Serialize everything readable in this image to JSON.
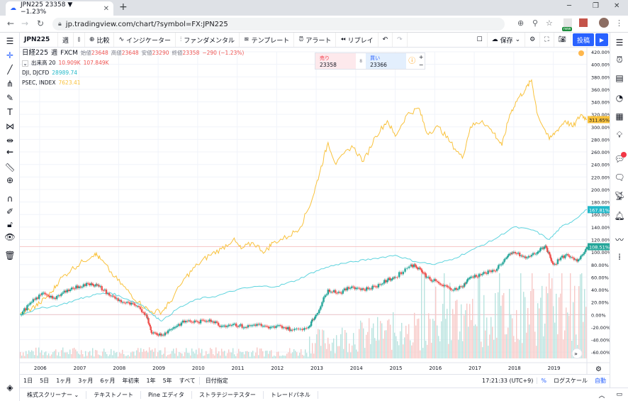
{
  "browser": {
    "tab_title": "JPN225 23358 ▼ −1.23%",
    "url": "jp.tradingview.com/chart/?symbol=FX:JPN225"
  },
  "toolbar": {
    "symbol": "JPN225",
    "interval": "週",
    "compare": "比較",
    "indicators": "インジケーター",
    "fundamentals": "ファンダメンタル",
    "templates": "テンプレート",
    "alert": "アラート",
    "replay": "リプレイ",
    "save": "保存",
    "post": "投稿",
    "new_badge": "new"
  },
  "legend": {
    "title": "日経225",
    "interval": "週",
    "source": "FXCM",
    "open_label": "始値",
    "open": "23648",
    "high_label": "高値",
    "high": "23648",
    "low_label": "安値",
    "low": "23290",
    "close_label": "終値",
    "close": "23358",
    "change": "−290 (−1.23%)",
    "volume_label": "出来高 20",
    "volume_1": "10.909K",
    "volume_2": "107.849K",
    "dji_label": "DJI, DJCFD",
    "dji_value": "28989.74",
    "psec_label": "PSEC, INDEX",
    "psec_value": "7623.41"
  },
  "trade": {
    "sell_label": "売り",
    "sell_price": "23358",
    "spread": "8",
    "buy_label": "買い",
    "buy_price": "23366",
    "qty_plus": "+",
    "qty_minus": "−"
  },
  "range": {
    "buttons": [
      "1日",
      "5日",
      "1ヶ月",
      "3ヶ月",
      "6ヶ月",
      "年初来",
      "1年",
      "5年",
      "すべて"
    ],
    "goto_date": "日付指定",
    "time": "17:21:33 (UTC+9)",
    "percent": "%",
    "log": "ログスケール",
    "auto": "自動"
  },
  "panels": [
    "株式スクリーナー",
    "テキストノート",
    "Pine エディタ",
    "ストラテジーテスター",
    "トレードパネル"
  ],
  "colors": {
    "nikkei_up": "#26a69a",
    "nikkei_down": "#ef5350",
    "dji": "#5fd4de",
    "psec": "#f9c23c",
    "accent": "#2962ff"
  },
  "chart_data": {
    "type": "line",
    "ylim": [
      -70,
      420
    ],
    "y_ticks": [
      "420.00%",
      "400.00%",
      "380.00%",
      "360.00%",
      "340.00%",
      "320.00%",
      "300.00%",
      "280.00%",
      "260.00%",
      "240.00%",
      "220.00%",
      "200.00%",
      "180.00%",
      "160.00%",
      "140.00%",
      "120.00%",
      "100.00%",
      "80.00%",
      "60.00%",
      "40.00%",
      "20.00%",
      "0.00%",
      "-20.00%",
      "-40.00%",
      "-60.00%"
    ],
    "x_ticks": [
      "2006",
      "2007",
      "2008",
      "2009",
      "2010",
      "2011",
      "2012",
      "2013",
      "2014",
      "2015",
      "2016",
      "2017",
      "2018",
      "2019"
    ],
    "x_range": [
      2005.5,
      2019.85
    ],
    "last_labels": {
      "psec": "311.65%",
      "dji": "167.81%",
      "nikkei": "108.51%"
    },
    "series": [
      {
        "name": "PSEC, INDEX",
        "points": [
          [
            2005.5,
            0
          ],
          [
            2005.8,
            10
          ],
          [
            2006.0,
            18
          ],
          [
            2006.3,
            35
          ],
          [
            2006.5,
            55
          ],
          [
            2006.8,
            72
          ],
          [
            2007.1,
            85
          ],
          [
            2007.4,
            98
          ],
          [
            2007.55,
            88
          ],
          [
            2007.9,
            60
          ],
          [
            2008.2,
            40
          ],
          [
            2008.5,
            20
          ],
          [
            2008.8,
            5
          ],
          [
            2009.1,
            5
          ],
          [
            2009.3,
            20
          ],
          [
            2009.7,
            60
          ],
          [
            2010.0,
            80
          ],
          [
            2010.3,
            95
          ],
          [
            2010.6,
            105
          ],
          [
            2010.9,
            120
          ],
          [
            2011.1,
            105
          ],
          [
            2011.4,
            115
          ],
          [
            2011.7,
            100
          ],
          [
            2011.9,
            115
          ],
          [
            2012.3,
            125
          ],
          [
            2012.6,
            140
          ],
          [
            2012.9,
            185
          ],
          [
            2013.1,
            230
          ],
          [
            2013.3,
            275
          ],
          [
            2013.5,
            240
          ],
          [
            2013.9,
            270
          ],
          [
            2014.2,
            245
          ],
          [
            2014.5,
            285
          ],
          [
            2014.8,
            310
          ],
          [
            2015.0,
            285
          ],
          [
            2015.3,
            320
          ],
          [
            2015.6,
            330
          ],
          [
            2015.8,
            290
          ],
          [
            2016.1,
            300
          ],
          [
            2016.4,
            275
          ],
          [
            2016.7,
            250
          ],
          [
            2016.9,
            300
          ],
          [
            2017.2,
            310
          ],
          [
            2017.5,
            290
          ],
          [
            2017.7,
            270
          ],
          [
            2017.9,
            320
          ],
          [
            2018.1,
            345
          ],
          [
            2018.3,
            360
          ],
          [
            2018.45,
            375
          ],
          [
            2018.6,
            320
          ],
          [
            2018.9,
            280
          ],
          [
            2019.1,
            295
          ],
          [
            2019.3,
            310
          ],
          [
            2019.5,
            300
          ],
          [
            2019.7,
            320
          ],
          [
            2019.85,
            312
          ]
        ]
      },
      {
        "name": "DJI, DJCFD",
        "points": [
          [
            2005.5,
            0
          ],
          [
            2006.0,
            10
          ],
          [
            2006.5,
            15
          ],
          [
            2007.0,
            25
          ],
          [
            2007.4,
            32
          ],
          [
            2007.8,
            35
          ],
          [
            2008.2,
            25
          ],
          [
            2008.6,
            15
          ],
          [
            2008.9,
            -2
          ],
          [
            2009.1,
            -10
          ],
          [
            2009.5,
            10
          ],
          [
            2010.0,
            25
          ],
          [
            2010.5,
            30
          ],
          [
            2011.0,
            40
          ],
          [
            2011.5,
            45
          ],
          [
            2012.0,
            45
          ],
          [
            2012.5,
            55
          ],
          [
            2013.0,
            70
          ],
          [
            2013.5,
            80
          ],
          [
            2014.0,
            85
          ],
          [
            2014.5,
            90
          ],
          [
            2015.0,
            95
          ],
          [
            2015.5,
            85
          ],
          [
            2016.0,
            80
          ],
          [
            2016.5,
            90
          ],
          [
            2017.0,
            105
          ],
          [
            2017.5,
            120
          ],
          [
            2018.0,
            140
          ],
          [
            2018.5,
            135
          ],
          [
            2018.9,
            120
          ],
          [
            2019.2,
            140
          ],
          [
            2019.5,
            150
          ],
          [
            2019.85,
            168
          ]
        ]
      },
      {
        "name": "日経225",
        "points": [
          [
            2005.5,
            0
          ],
          [
            2005.8,
            20
          ],
          [
            2006.1,
            35
          ],
          [
            2006.4,
            25
          ],
          [
            2006.7,
            40
          ],
          [
            2007.0,
            45
          ],
          [
            2007.3,
            50
          ],
          [
            2007.5,
            45
          ],
          [
            2007.8,
            30
          ],
          [
            2008.1,
            20
          ],
          [
            2008.4,
            15
          ],
          [
            2008.7,
            0
          ],
          [
            2008.85,
            -30
          ],
          [
            2009.1,
            -32
          ],
          [
            2009.4,
            -20
          ],
          [
            2009.7,
            -10
          ],
          [
            2010.0,
            -12
          ],
          [
            2010.3,
            -8
          ],
          [
            2010.6,
            -18
          ],
          [
            2010.9,
            -15
          ],
          [
            2011.2,
            -20
          ],
          [
            2011.5,
            -15
          ],
          [
            2011.8,
            -22
          ],
          [
            2012.1,
            -18
          ],
          [
            2012.4,
            -25
          ],
          [
            2012.8,
            -20
          ],
          [
            2013.0,
            0
          ],
          [
            2013.3,
            40
          ],
          [
            2013.6,
            35
          ],
          [
            2013.9,
            45
          ],
          [
            2014.2,
            40
          ],
          [
            2014.5,
            45
          ],
          [
            2014.8,
            55
          ],
          [
            2015.0,
            60
          ],
          [
            2015.4,
            80
          ],
          [
            2015.6,
            75
          ],
          [
            2015.8,
            60
          ],
          [
            2016.1,
            50
          ],
          [
            2016.4,
            40
          ],
          [
            2016.7,
            45
          ],
          [
            2016.9,
            60
          ],
          [
            2017.2,
            65
          ],
          [
            2017.5,
            70
          ],
          [
            2017.8,
            90
          ],
          [
            2018.0,
            100
          ],
          [
            2018.3,
            90
          ],
          [
            2018.6,
            100
          ],
          [
            2018.8,
            110
          ],
          [
            2019.0,
            80
          ],
          [
            2019.3,
            95
          ],
          [
            2019.6,
            85
          ],
          [
            2019.85,
            108
          ]
        ]
      }
    ],
    "volume_note": "volume histogram shown at bottom",
    "grid": true
  }
}
